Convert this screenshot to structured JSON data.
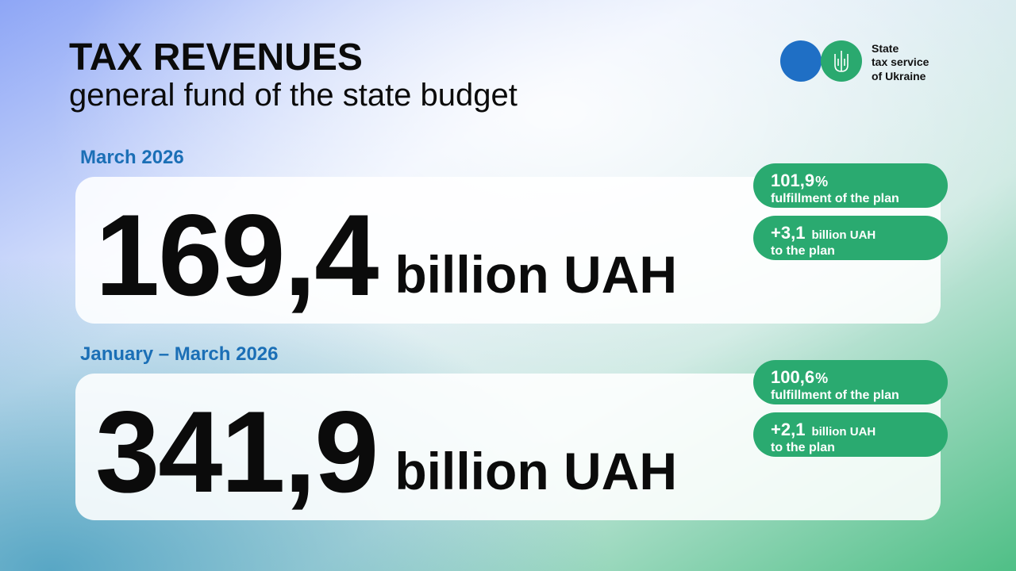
{
  "header": {
    "title": "TAX REVENUES",
    "subtitle": "general fund of the state budget"
  },
  "logo": {
    "lines": [
      "State",
      "tax service",
      "of Ukraine"
    ]
  },
  "sections": [
    {
      "period": "March 2026",
      "amount": "169,4",
      "unit": "billion UAH",
      "badges": [
        {
          "value": "101,9",
          "suffix": "%",
          "caption": "fulfillment of the plan"
        },
        {
          "value": "+3,1",
          "suffix": "billion UAH",
          "caption": "to the plan"
        }
      ]
    },
    {
      "period": "January – March 2026",
      "amount": "341,9",
      "unit": "billion UAH",
      "badges": [
        {
          "value": "100,6",
          "suffix": "%",
          "caption": "fulfillment of the plan"
        },
        {
          "value": "+2,1",
          "suffix": "billion UAH",
          "caption": "to the plan"
        }
      ]
    }
  ]
}
